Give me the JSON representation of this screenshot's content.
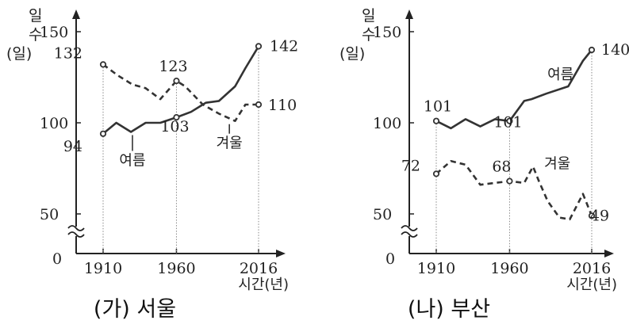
{
  "chart_data": [
    {
      "type": "line",
      "title": "(가) 서울",
      "ylabel": "일수 (일)",
      "xlabel": "시간(년)",
      "ylim": [
        0,
        150
      ],
      "yticks": [
        "150",
        "100",
        "50",
        "0"
      ],
      "xticks": [
        "1910",
        "1960",
        "2016"
      ],
      "marked_points": [
        {
          "series": "여름",
          "x": 1910,
          "y": 94,
          "label": "94"
        },
        {
          "series": "여름",
          "x": 1960,
          "y": 103,
          "label": "103"
        },
        {
          "series": "여름",
          "x": 2016,
          "y": 142,
          "label": "142"
        },
        {
          "series": "겨울",
          "x": 1910,
          "y": 132,
          "label": "132"
        },
        {
          "series": "겨울",
          "x": 1960,
          "y": 123,
          "label": "123"
        },
        {
          "series": "겨울",
          "x": 2016,
          "y": 110,
          "label": "110"
        }
      ],
      "series": [
        {
          "name": "여름",
          "style": "solid",
          "x": [
            1910,
            1919,
            1929,
            1939,
            1949,
            1960,
            1970,
            1980,
            1989,
            2000,
            2007,
            2016
          ],
          "y": [
            94,
            100,
            95,
            100,
            100,
            103,
            106,
            111,
            112,
            120,
            130,
            142
          ]
        },
        {
          "name": "겨울",
          "style": "dashed",
          "x": [
            1910,
            1920,
            1930,
            1939,
            1949,
            1960,
            1966,
            1978,
            1989,
            2000,
            2007,
            2016
          ],
          "y": [
            132,
            126,
            121,
            119,
            113,
            123,
            120,
            110,
            105,
            101,
            110,
            110
          ]
        }
      ]
    },
    {
      "type": "line",
      "title": "(나) 부산",
      "ylabel": "일수 (일)",
      "xlabel": "시간(년)",
      "ylim": [
        0,
        150
      ],
      "yticks": [
        "150",
        "100",
        "50",
        "0"
      ],
      "xticks": [
        "1910",
        "1960",
        "2016"
      ],
      "marked_points": [
        {
          "series": "여름",
          "x": 1910,
          "y": 101,
          "label": "101"
        },
        {
          "series": "여름",
          "x": 1960,
          "y": 101,
          "label": "101"
        },
        {
          "series": "여름",
          "x": 2016,
          "y": 140,
          "label": "140"
        },
        {
          "series": "겨울",
          "x": 1910,
          "y": 72,
          "label": "72"
        },
        {
          "series": "겨울",
          "x": 1960,
          "y": 68,
          "label": "68"
        },
        {
          "series": "겨울",
          "x": 2016,
          "y": 49,
          "label": "49"
        }
      ],
      "series": [
        {
          "name": "여름",
          "style": "solid",
          "x": [
            1910,
            1920,
            1930,
            1940,
            1950,
            1960,
            1970,
            1975,
            1985,
            2000,
            2010,
            2016
          ],
          "y": [
            101,
            97,
            102,
            98,
            102,
            101,
            112,
            113,
            116,
            120,
            134,
            140
          ]
        },
        {
          "name": "겨울",
          "style": "dashed",
          "x": [
            1910,
            1920,
            1930,
            1940,
            1950,
            1960,
            1970,
            1976,
            1980,
            1986,
            1994,
            2001,
            2010,
            2016
          ],
          "y": [
            72,
            79,
            77,
            66,
            67,
            68,
            67,
            76,
            68,
            57,
            48,
            47,
            61,
            49
          ]
        }
      ]
    }
  ]
}
